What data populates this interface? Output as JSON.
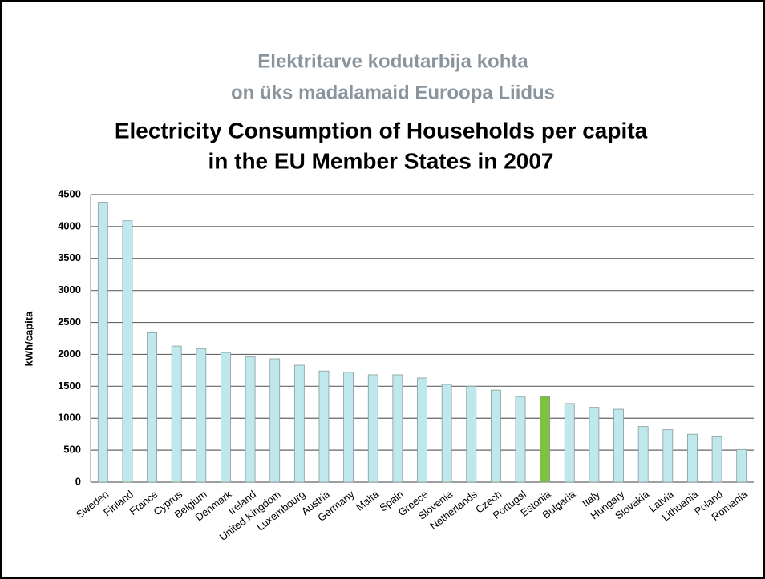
{
  "chart_data": {
    "type": "bar",
    "subtitle": [
      "Elektritarve kodutarbija kohta",
      "on üks madalamaid Euroopa Liidus"
    ],
    "title": [
      "Electricity Consumption of Households per capita",
      "in the EU Member States in 2007"
    ],
    "y_label": "kWh/capita",
    "categories": [
      "Sweden",
      "Finland",
      "France",
      "Cyprus",
      "Belgium",
      "Denmark",
      "Ireland",
      "United Kingdom",
      "Luxembourg",
      "Austria",
      "Germany",
      "Malta",
      "Spain",
      "Greece",
      "Slovenia",
      "Netherlands",
      "Czech",
      "Portugal",
      "Estonia",
      "Bulgaria",
      "Italy",
      "Hungary",
      "Slovakia",
      "Latvia",
      "Lithuania",
      "Poland",
      "Romania"
    ],
    "values": [
      4380,
      4090,
      2340,
      2130,
      2090,
      2030,
      1960,
      1930,
      1830,
      1740,
      1720,
      1680,
      1680,
      1630,
      1530,
      1500,
      1440,
      1340,
      1340,
      1230,
      1170,
      1140,
      870,
      820,
      750,
      710,
      510
    ],
    "colors": [
      "#bfe8ec",
      "#bfe8ec",
      "#bfe8ec",
      "#bfe8ec",
      "#bfe8ec",
      "#bfe8ec",
      "#bfe8ec",
      "#bfe8ec",
      "#bfe8ec",
      "#bfe8ec",
      "#bfe8ec",
      "#bfe8ec",
      "#bfe8ec",
      "#bfe8ec",
      "#bfe8ec",
      "#bfe8ec",
      "#bfe8ec",
      "#bfe8ec",
      "#7dc242",
      "#bfe8ec",
      "#bfe8ec",
      "#bfe8ec",
      "#bfe8ec",
      "#bfe8ec",
      "#bfe8ec",
      "#bfe8ec",
      "#bfe8ec"
    ],
    "ylim": [
      0,
      4500
    ],
    "yticks": [
      0,
      500,
      1000,
      1500,
      2000,
      2500,
      3000,
      3500,
      4000,
      4500
    ],
    "grid": true
  }
}
